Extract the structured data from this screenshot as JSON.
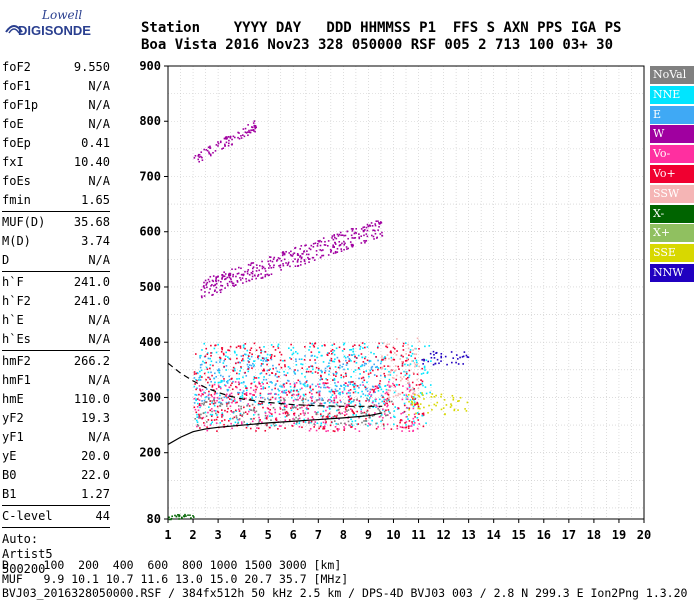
{
  "logo": {
    "top": "Lowell",
    "bottom": "DIGISONDE"
  },
  "header": {
    "line1": "Station    YYYY DAY   DDD HHMMSS P1  FFS S AXN PPS IGA PS",
    "line2": "Boa Vista 2016 Nov23 328 050000 RSF 005 2 713 100 03+ 30"
  },
  "params_group1": [
    {
      "name": "foF2",
      "value": "9.550"
    },
    {
      "name": "foF1",
      "value": "N/A"
    },
    {
      "name": "foF1p",
      "value": "N/A"
    },
    {
      "name": "foE",
      "value": "N/A"
    },
    {
      "name": "foEp",
      "value": "0.41"
    },
    {
      "name": "fxI",
      "value": "10.40"
    },
    {
      "name": "foEs",
      "value": "N/A"
    },
    {
      "name": "fmin",
      "value": "1.65"
    }
  ],
  "params_group2": [
    {
      "name": "MUF(D)",
      "value": "35.68"
    },
    {
      "name": "M(D)",
      "value": "3.74"
    },
    {
      "name": "D",
      "value": "N/A"
    }
  ],
  "params_group3": [
    {
      "name": "h`F",
      "value": "241.0"
    },
    {
      "name": "h`F2",
      "value": "241.0"
    },
    {
      "name": "h`E",
      "value": "N/A"
    },
    {
      "name": "h`Es",
      "value": "N/A"
    }
  ],
  "params_group4": [
    {
      "name": "hmF2",
      "value": "266.2"
    },
    {
      "name": "hmF1",
      "value": "N/A"
    },
    {
      "name": "hmE",
      "value": "110.0"
    },
    {
      "name": "yF2",
      "value": "19.3"
    },
    {
      "name": "yF1",
      "value": "N/A"
    },
    {
      "name": "yE",
      "value": "20.0"
    },
    {
      "name": "B0",
      "value": "22.0"
    },
    {
      "name": "B1",
      "value": "1.27"
    }
  ],
  "params_group5": [
    {
      "name": "C-level",
      "value": "44"
    }
  ],
  "auto": {
    "label": "Auto:",
    "name": "Artist5",
    "code": "500200"
  },
  "footer": {
    "d_line": "D     100  200  400  600  800 1000 1500 3000 [km]",
    "muf_line": "MUF   9.9 10.1 10.7 11.6 13.0 15.0 20.7 35.7 [MHz]",
    "file_line": "BVJ03_2016328050000.RSF / 384fx512h 50 kHz 2.5 km / DPS-4D BVJ03 003 / 2.8 N 299.3 E Ion2Png 1.3.20"
  },
  "legend": [
    {
      "label": "NoVal",
      "color": "#808080",
      "text_color": "#ffffff"
    },
    {
      "label": "NNE",
      "color": "#00e5ff",
      "text_color": "#ffffff"
    },
    {
      "label": "E",
      "color": "#3fa9f5",
      "text_color": "#ffffff"
    },
    {
      "label": "W",
      "color": "#a000a0",
      "text_color": "#ffffff"
    },
    {
      "label": "Vo-",
      "color": "#ff2fa0",
      "text_color": "#ffffff"
    },
    {
      "label": "Vo+",
      "color": "#f00030",
      "text_color": "#ffffff"
    },
    {
      "label": "SSW",
      "color": "#f5b5b5",
      "text_color": "#ffffff"
    },
    {
      "label": "X-",
      "color": "#006400",
      "text_color": "#ffffff"
    },
    {
      "label": "X+",
      "color": "#90c060",
      "text_color": "#ffffff"
    },
    {
      "label": "SSE",
      "color": "#d8d800",
      "text_color": "#ffffff"
    },
    {
      "label": "NNW",
      "color": "#2000c0",
      "text_color": "#ffffff"
    }
  ],
  "chart_data": {
    "type": "scatter",
    "title": "",
    "xlabel": "",
    "ylabel": "",
    "xlim": [
      1,
      20
    ],
    "ylim": [
      80,
      900
    ],
    "x_ticks": [
      1,
      2,
      3,
      4,
      5,
      6,
      7,
      8,
      9,
      10,
      11,
      12,
      13,
      14,
      15,
      16,
      17,
      18,
      19,
      20
    ],
    "y_ticks": [
      80,
      200,
      300,
      400,
      500,
      600,
      700,
      800,
      900
    ],
    "grid": true,
    "legend_position": "right",
    "clusters": [
      {
        "series": "NNE",
        "x_range": [
          2.0,
          11.5
        ],
        "y_range": [
          250,
          400
        ]
      },
      {
        "series": "E",
        "x_range": [
          2.0,
          9.5
        ],
        "y_range": [
          290,
          380
        ]
      },
      {
        "series": "W",
        "x_range": [
          2.3,
          9.6
        ],
        "y_range": [
          480,
          620
        ]
      },
      {
        "series": "W",
        "x_range": [
          2.0,
          4.5
        ],
        "y_range": [
          720,
          800
        ]
      },
      {
        "series": "Vo-",
        "x_range": [
          2.0,
          11.0
        ],
        "y_range": [
          240,
          330
        ]
      },
      {
        "series": "Vo+",
        "x_range": [
          2.0,
          11.2
        ],
        "y_range": [
          240,
          400
        ]
      },
      {
        "series": "SSW",
        "x_range": [
          9.5,
          11.0
        ],
        "y_range": [
          300,
          410
        ]
      },
      {
        "series": "SSE",
        "x_range": [
          10.5,
          13.0
        ],
        "y_range": [
          270,
          310
        ]
      },
      {
        "series": "NNW",
        "x_range": [
          11.0,
          13.0
        ],
        "y_range": [
          360,
          385
        ]
      },
      {
        "series": "X-",
        "x_range": [
          1.0,
          2.0
        ],
        "y_range": [
          80,
          90
        ]
      },
      {
        "series": "NoVal",
        "x_range": [
          2.0,
          10.0
        ],
        "y_range": [
          250,
          300
        ]
      }
    ],
    "lines": [
      {
        "name": "",
        "style": "solid",
        "points": [
          [
            1.0,
            215
          ],
          [
            1.5,
            228
          ],
          [
            2.0,
            238
          ],
          [
            2.5,
            243
          ],
          [
            3.0,
            246
          ],
          [
            4.0,
            250
          ],
          [
            5.0,
            254
          ],
          [
            6.0,
            257
          ],
          [
            7.0,
            260
          ],
          [
            8.0,
            263
          ],
          [
            9.0,
            267
          ],
          [
            9.55,
            272
          ]
        ]
      },
      {
        "name": "",
        "style": "dashed",
        "points": [
          [
            1.0,
            362
          ],
          [
            1.5,
            344
          ],
          [
            2.0,
            330
          ],
          [
            2.5,
            318
          ],
          [
            3.0,
            309
          ],
          [
            3.5,
            302
          ],
          [
            4.0,
            297
          ],
          [
            5.0,
            291
          ],
          [
            6.0,
            287
          ],
          [
            7.0,
            285
          ],
          [
            8.0,
            284
          ],
          [
            9.55,
            284
          ]
        ]
      }
    ]
  }
}
